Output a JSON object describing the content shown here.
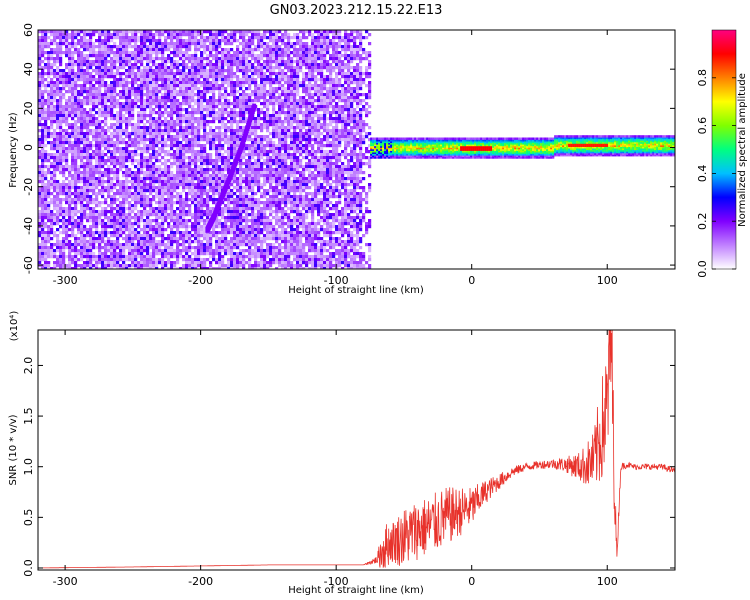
{
  "title": "GN03.2023.212.15.22.E13",
  "chart_data": [
    {
      "type": "heatmap",
      "xlabel": "Height of straight line (km)",
      "ylabel": "Frequency (Hz)",
      "xlim": [
        -320,
        150
      ],
      "ylim": [
        -62,
        60
      ],
      "x_ticks": [
        -300,
        -200,
        -100,
        0,
        100
      ],
      "x_tick_labels": [
        "-300",
        "-200",
        "-100",
        "0",
        "100"
      ],
      "y_ticks": [
        60,
        40,
        20,
        0,
        -20,
        -40,
        -60
      ],
      "y_tick_labels": [
        "60",
        "40",
        "20",
        "0",
        "-20",
        "-40",
        "-60"
      ],
      "colorbar": {
        "label": "Normalized spectral amplitude",
        "ticks": [
          0.0,
          0.2,
          0.4,
          0.6,
          0.8
        ],
        "tick_labels": [
          "0.0",
          "0.2",
          "0.4",
          "0.6",
          "0.8"
        ],
        "range": [
          0,
          1
        ],
        "colors": [
          "#ffffff",
          "#c080ff",
          "#8000ff",
          "#0000ff",
          "#00c0ff",
          "#00ff80",
          "#80ff00",
          "#ffff00",
          "#ff8000",
          "#ff0000",
          "#ff0080"
        ]
      },
      "regions": [
        {
          "x_range": [
            -320,
            -75
          ],
          "freq_range": [
            -60,
            60
          ],
          "amplitude": 0.1
        },
        {
          "x_range": [
            -75,
            150
          ],
          "freq_center": 0,
          "freq_halfwidth": 5,
          "amplitude_peak": 0.9
        }
      ],
      "trace": {
        "x": [
          -195,
          -190,
          -180,
          -170,
          -160
        ],
        "freq": [
          -42,
          -35,
          -18,
          0,
          22
        ],
        "amplitude": 0.15
      },
      "grid": false
    },
    {
      "type": "line",
      "xlabel": "Height of straight line (km)",
      "ylabel": "SNR (10 * v/v)",
      "y_multiplier_label": "(x10⁴)",
      "xlim": [
        -320,
        150
      ],
      "ylim": [
        -0.02,
        2.35
      ],
      "x_ticks": [
        -300,
        -200,
        -100,
        0,
        100
      ],
      "x_tick_labels": [
        "-300",
        "-200",
        "-100",
        "0",
        "100"
      ],
      "y_ticks": [
        0.0,
        0.5,
        1.0,
        1.5,
        2.0
      ],
      "y_tick_labels": [
        "0.0",
        "0.5",
        "1.0",
        "1.5",
        "2.0"
      ],
      "series": [
        {
          "color": "#e8322b",
          "x": [
            -320,
            -250,
            -200,
            -150,
            -100,
            -80,
            -70,
            -65,
            -60,
            -50,
            -40,
            -30,
            -20,
            -10,
            0,
            10,
            20,
            30,
            40,
            50,
            60,
            70,
            80,
            90,
            95,
            100,
            103,
            105,
            107,
            110,
            115,
            120,
            130,
            140,
            150
          ],
          "y": [
            0.0,
            0.01,
            0.02,
            0.03,
            0.03,
            0.03,
            0.08,
            0.2,
            0.25,
            0.3,
            0.38,
            0.42,
            0.5,
            0.55,
            0.6,
            0.75,
            0.85,
            0.95,
            1.0,
            1.02,
            1.03,
            1.02,
            1.0,
            1.05,
            1.3,
            1.6,
            2.3,
            1.0,
            0.1,
            1.0,
            1.02,
            1.0,
            1.0,
            1.0,
            0.96
          ],
          "noise_amplitude": [
            0.0,
            0.0,
            0.0,
            0.0,
            0.0,
            0.0,
            0.04,
            0.25,
            0.2,
            0.3,
            0.3,
            0.3,
            0.3,
            0.25,
            0.2,
            0.12,
            0.08,
            0.05,
            0.04,
            0.04,
            0.05,
            0.08,
            0.15,
            0.3,
            0.5,
            0.6,
            0.9,
            0.4,
            0.1,
            0.04,
            0.03,
            0.03,
            0.03,
            0.03,
            0.03
          ]
        }
      ],
      "grid": false
    }
  ]
}
